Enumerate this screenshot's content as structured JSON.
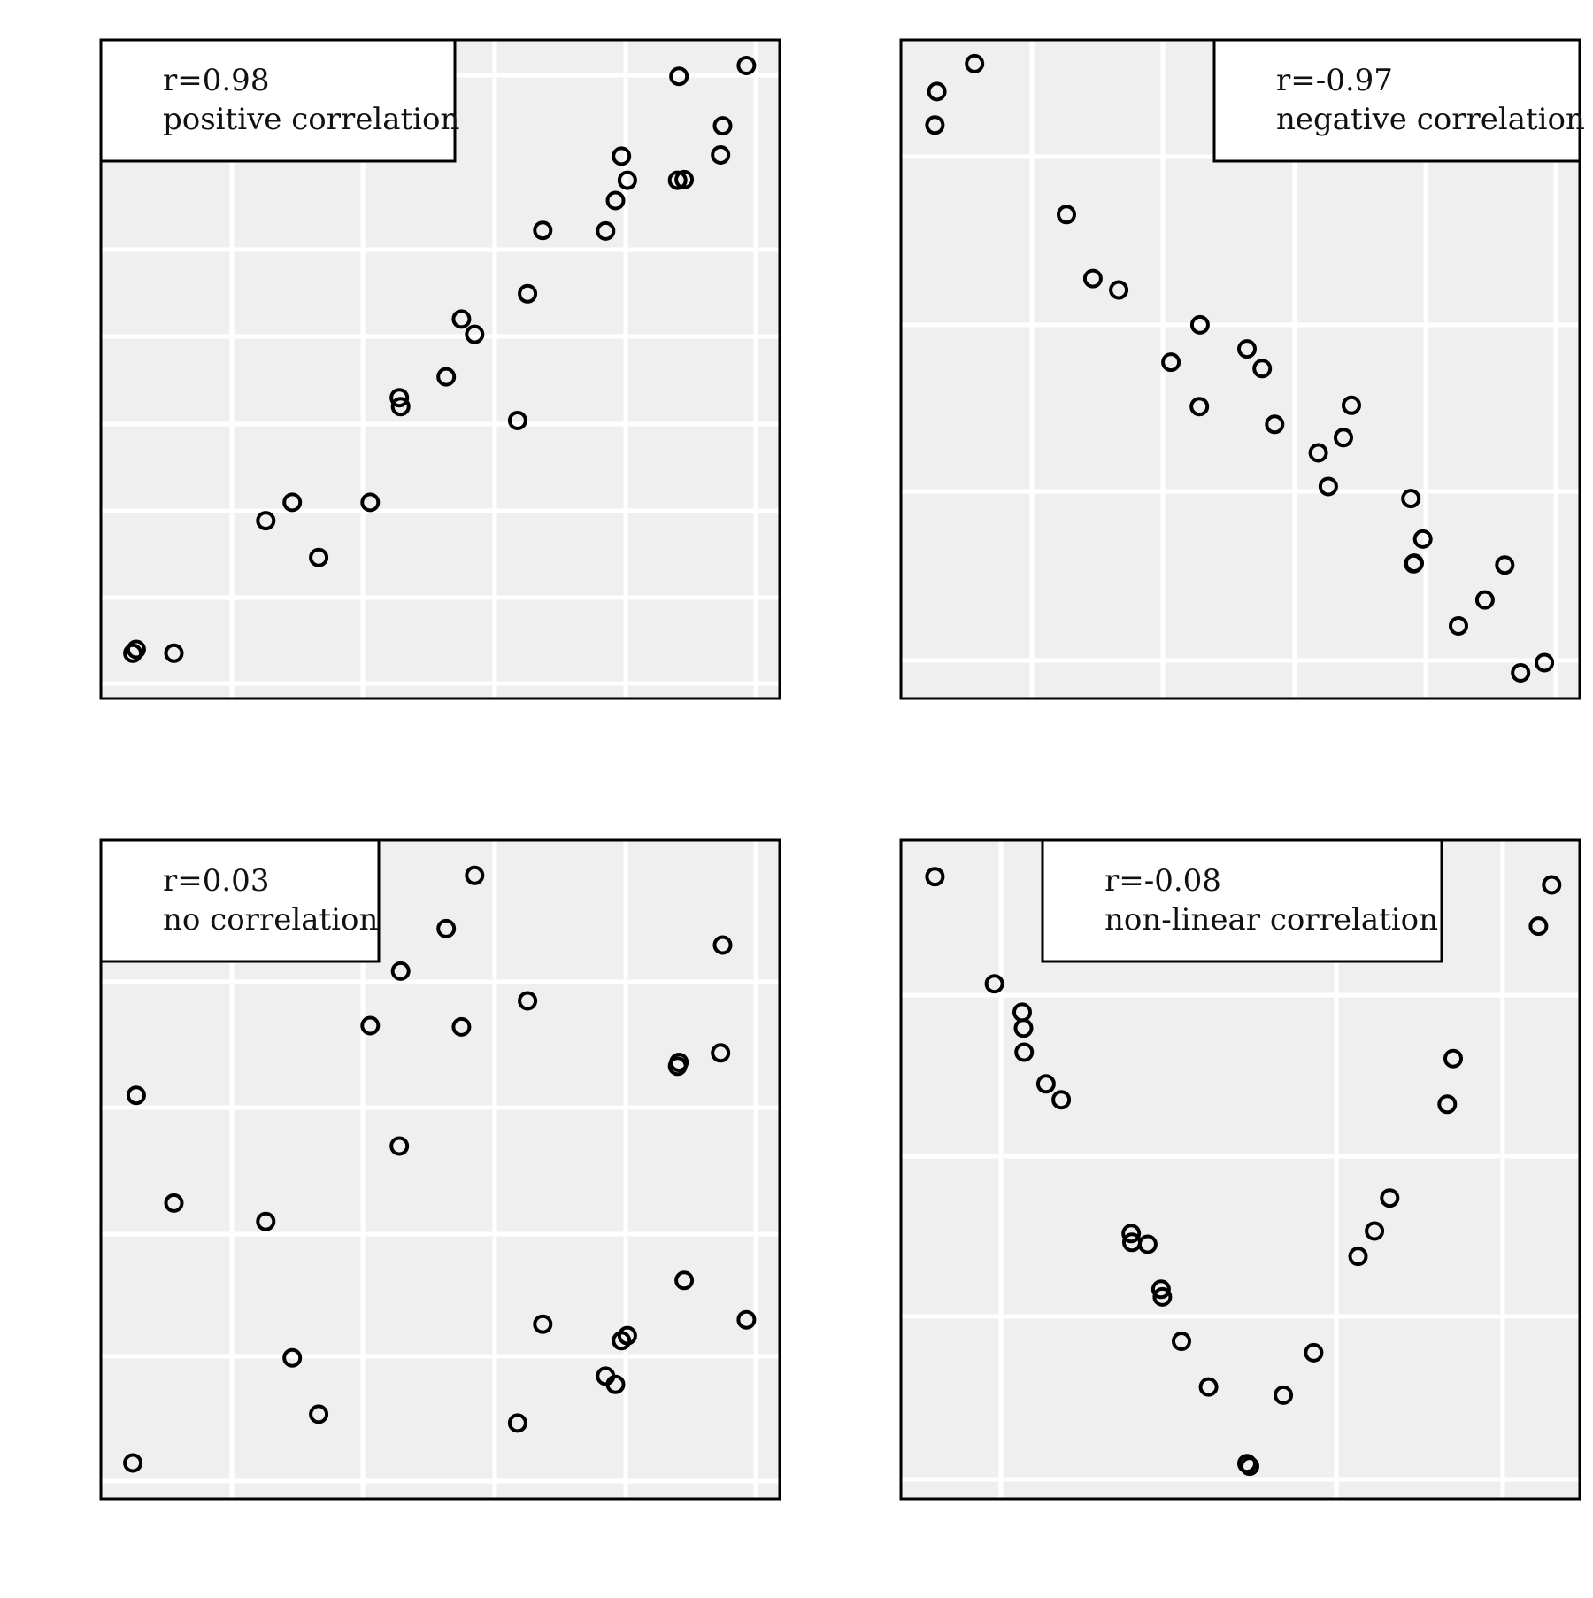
{
  "colors": {
    "panel_background": "#efefef",
    "grid": "#ffffff",
    "frame": "#000000",
    "legend_background": "#ffffff",
    "marker_stroke": "#000000"
  },
  "chart_data": [
    {
      "type": "scatter",
      "legend_placement": "top-left",
      "legend_lines": [
        "r=0.98",
        "positive correlation"
      ],
      "grid": true,
      "axes_labels_shown": false,
      "xlim": [
        0,
        1
      ],
      "ylim": [
        0,
        1
      ],
      "x": [
        0.035,
        0.04,
        0.097,
        0.236,
        0.276,
        0.316,
        0.394,
        0.438,
        0.44,
        0.509,
        0.532,
        0.552,
        0.617,
        0.632,
        0.655,
        0.75,
        0.765,
        0.774,
        0.783,
        0.861,
        0.924,
        0.927,
        0.963
      ],
      "y": [
        0.052,
        0.058,
        0.052,
        0.261,
        0.29,
        0.203,
        0.29,
        0.455,
        0.441,
        0.488,
        0.579,
        0.555,
        0.419,
        0.619,
        0.719,
        0.718,
        0.766,
        0.836,
        0.798,
        0.962,
        0.838,
        0.884,
        0.979
      ],
      "x_extra": [
        0.859,
        0.869
      ],
      "y_extra": [
        0.798,
        0.799
      ]
    },
    {
      "type": "scatter",
      "legend_placement": "top-right",
      "legend_lines": [
        "r=-0.97",
        "negative correlation"
      ],
      "grid": true,
      "axes_labels_shown": false,
      "xlim": [
        0,
        1
      ],
      "ylim": [
        0,
        1
      ],
      "x": [
        0.038,
        0.041,
        0.098,
        0.237,
        0.277,
        0.316,
        0.395,
        0.439,
        0.438,
        0.51,
        0.533,
        0.552,
        0.618,
        0.633,
        0.656,
        0.668,
        0.758,
        0.763,
        0.762,
        0.776,
        0.83,
        0.87,
        0.9,
        0.924,
        0.96
      ],
      "y": [
        0.885,
        0.938,
        0.982,
        0.744,
        0.643,
        0.625,
        0.511,
        0.57,
        0.441,
        0.532,
        0.501,
        0.413,
        0.368,
        0.315,
        0.392,
        0.443,
        0.296,
        0.194,
        0.193,
        0.232,
        0.095,
        0.136,
        0.191,
        0.021,
        0.037
      ]
    },
    {
      "type": "scatter",
      "legend_placement": "top-left",
      "legend_lines": [
        "r=0.03",
        "no correlation"
      ],
      "grid": true,
      "axes_labels_shown": false,
      "xlim": [
        0,
        1
      ],
      "ylim": [
        0,
        1
      ],
      "x": [
        0.035,
        0.04,
        0.097,
        0.236,
        0.276,
        0.316,
        0.394,
        0.438,
        0.44,
        0.509,
        0.532,
        0.552,
        0.617,
        0.632,
        0.655,
        0.75,
        0.765,
        0.774,
        0.783,
        0.861,
        0.924,
        0.927,
        0.963
      ],
      "y": [
        0.037,
        0.617,
        0.447,
        0.418,
        0.203,
        0.114,
        0.727,
        0.537,
        0.813,
        0.88,
        0.725,
        0.964,
        0.1,
        0.766,
        0.256,
        0.174,
        0.161,
        0.23,
        0.238,
        0.669,
        0.684,
        0.854,
        0.263
      ],
      "x_extra": [
        0.869,
        0.859
      ],
      "y_extra": [
        0.325,
        0.663
      ]
    },
    {
      "type": "scatter",
      "legend_placement": "top-center",
      "legend_lines": [
        "r=-0.08",
        "non-linear correlation"
      ],
      "grid": true,
      "axes_labels_shown": false,
      "xlim": [
        0,
        1
      ],
      "ylim": [
        0,
        1
      ],
      "x": [
        0.038,
        0.128,
        0.17,
        0.172,
        0.173,
        0.206,
        0.229,
        0.335,
        0.336,
        0.36,
        0.38,
        0.382,
        0.411,
        0.452,
        0.51,
        0.514,
        0.565,
        0.611,
        0.678,
        0.703,
        0.726,
        0.813,
        0.822,
        0.951,
        0.971
      ],
      "y": [
        0.962,
        0.793,
        0.748,
        0.723,
        0.685,
        0.635,
        0.61,
        0.399,
        0.385,
        0.382,
        0.311,
        0.299,
        0.229,
        0.157,
        0.036,
        0.032,
        0.144,
        0.211,
        0.363,
        0.403,
        0.455,
        0.603,
        0.675,
        0.884,
        0.949
      ]
    }
  ]
}
